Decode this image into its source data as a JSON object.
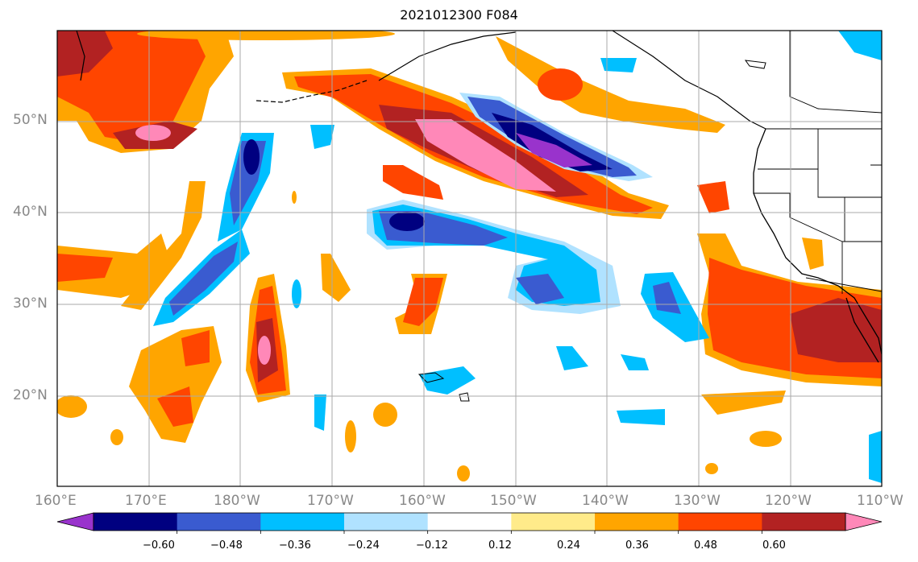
{
  "title": "2021012300 F084",
  "map": {
    "lat_labels": [
      "50°N",
      "40°N",
      "30°N",
      "20°N"
    ],
    "lon_labels": [
      "160°E",
      "170°E",
      "180°W",
      "170°W",
      "160°W",
      "150°W",
      "140°W",
      "130°W",
      "120°W",
      "110°W"
    ]
  },
  "colorbar": {
    "labels": [
      "−0.60",
      "−0.48",
      "−0.36",
      "−0.24",
      "−0.12",
      "0.12",
      "0.24",
      "0.36",
      "0.48",
      "0.60"
    ],
    "colors": [
      "#9933cc",
      "#000080",
      "#3a5bd0",
      "#00bfff",
      "#b0e2ff",
      "#ffffff",
      "#ffeb8a",
      "#ffa500",
      "#ff4500",
      "#b22222",
      "#ff88b8"
    ]
  }
}
